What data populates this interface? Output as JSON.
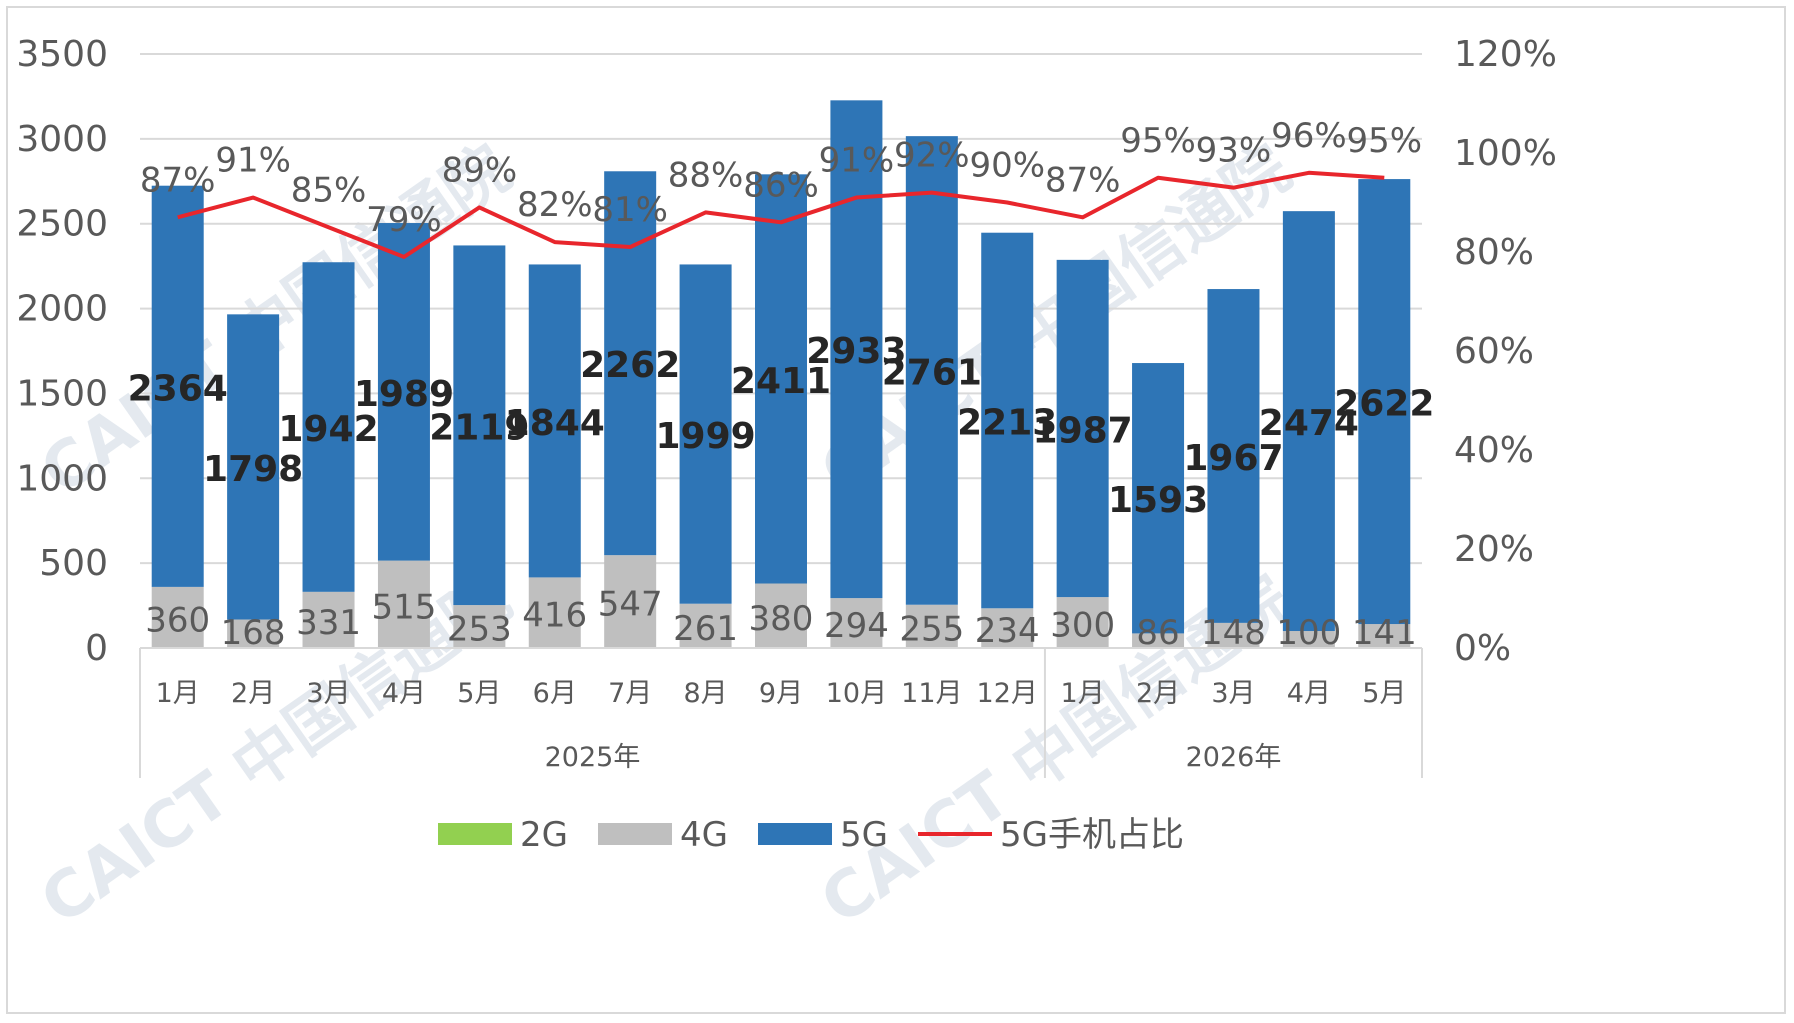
{
  "chart_data": {
    "type": "bar",
    "stacked": true,
    "groups": [
      {
        "label": "2025年",
        "categories": [
          "1月",
          "2月",
          "3月",
          "4月",
          "5月",
          "6月",
          "7月",
          "8月",
          "9月",
          "10月",
          "11月",
          "12月"
        ]
      },
      {
        "label": "2026年",
        "categories": [
          "1月",
          "2月",
          "3月",
          "4月",
          "5月"
        ]
      }
    ],
    "categories": [
      "1月",
      "2月",
      "3月",
      "4月",
      "5月",
      "6月",
      "7月",
      "8月",
      "9月",
      "10月",
      "11月",
      "12月",
      "1月",
      "2月",
      "3月",
      "4月",
      "5月"
    ],
    "series": [
      {
        "name": "2G",
        "color": "#92d050",
        "values": [
          0,
          0,
          0,
          0,
          0,
          0,
          0,
          0,
          0,
          0,
          0,
          0,
          0,
          0,
          0,
          0,
          0
        ]
      },
      {
        "name": "4G",
        "color": "#bfbfbf",
        "values": [
          360,
          168,
          331,
          515,
          253,
          416,
          547,
          261,
          380,
          294,
          255,
          234,
          300,
          86,
          148,
          100,
          141
        ]
      },
      {
        "name": "5G",
        "color": "#2e75b6",
        "values": [
          2364,
          1798,
          1942,
          1989,
          2119,
          1844,
          2262,
          1999,
          2411,
          2933,
          2761,
          2213,
          1987,
          1593,
          1967,
          2474,
          2622
        ]
      },
      {
        "name": "5G手机占比",
        "type": "line",
        "axis": "right",
        "color": "#e8262c",
        "values": [
          87,
          91,
          85,
          79,
          89,
          82,
          81,
          88,
          86,
          91,
          92,
          90,
          87,
          95,
          93,
          96,
          95
        ],
        "labels": [
          "87%",
          "91%",
          "85%",
          "79%",
          "89%",
          "82%",
          "81%",
          "88%",
          "86%",
          "91%",
          "92%",
          "90%",
          "87%",
          "95%",
          "93%",
          "96%",
          "95%"
        ]
      }
    ],
    "ylim": [
      0,
      3500
    ],
    "yticks": [
      "0",
      "500",
      "1000",
      "1500",
      "2000",
      "2500",
      "3000",
      "3500"
    ],
    "y2lim": [
      0,
      120
    ],
    "y2ticks": [
      "0%",
      "20%",
      "40%",
      "60%",
      "80%",
      "100%",
      "120%"
    ],
    "grid": true,
    "legend_position": "bottom"
  },
  "watermark": "CAICT 中国信通院"
}
